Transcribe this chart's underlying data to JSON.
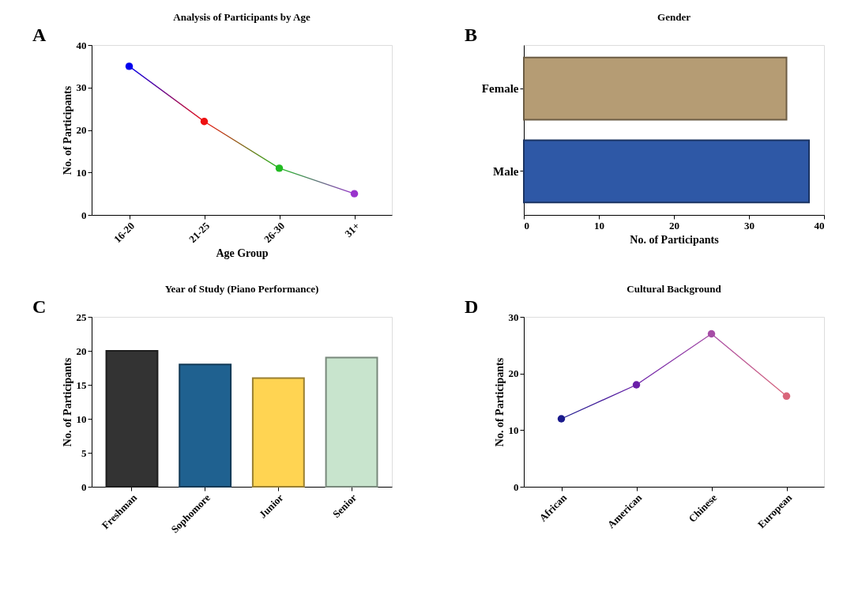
{
  "chart_data": [
    {
      "type": "line",
      "title": "Analysis of Participants by Age",
      "xlabel": "Age Group",
      "ylabel": "No. of Participants",
      "categories": [
        "16-20",
        "21-25",
        "26-30",
        "31+"
      ],
      "ylim": [
        0,
        40
      ],
      "yticks": [
        0,
        10,
        20,
        30,
        40
      ],
      "marker": "circle",
      "annotations": [
        "A"
      ],
      "series": [
        {
          "values": [
            35,
            22,
            11,
            5
          ],
          "colors": [
            "#0000ee",
            "#ee1111",
            "#22bb22",
            "#9933cc"
          ]
        }
      ]
    },
    {
      "type": "bar",
      "orientation": "horizontal",
      "title": "Gender",
      "xlabel": "No. of Participants",
      "categories": [
        "Female",
        "Male"
      ],
      "xlim": [
        0,
        40
      ],
      "xticks": [
        0,
        10,
        20,
        30,
        40
      ],
      "annotations": [
        "B"
      ],
      "series": [
        {
          "values": [
            35,
            38
          ],
          "colors": [
            "#b59c74",
            "#2e58a6"
          ]
        }
      ]
    },
    {
      "type": "bar",
      "title": "Year of Study (Piano Performance)",
      "ylabel": "No. of Participants",
      "categories": [
        "Freshman",
        "Sophomore",
        "Junior",
        "Senior"
      ],
      "ylim": [
        0,
        25
      ],
      "yticks": [
        0,
        5,
        10,
        15,
        20,
        25
      ],
      "annotations": [
        "C"
      ],
      "series": [
        {
          "values": [
            20,
            18,
            16,
            19
          ],
          "colors": [
            "#333333",
            "#1f6190",
            "#ffd452",
            "#c8e4cd"
          ]
        }
      ]
    },
    {
      "type": "line",
      "title": "Cultural Background",
      "ylabel": "No. of Participants",
      "categories": [
        "African",
        "American",
        "Chinese",
        "European"
      ],
      "ylim": [
        0,
        30
      ],
      "yticks": [
        0,
        10,
        20,
        30
      ],
      "marker": "circle",
      "annotations": [
        "D"
      ],
      "series": [
        {
          "values": [
            12,
            18,
            27,
            16
          ],
          "colors": [
            "#1a1a8c",
            "#6a1fa8",
            "#a64ca6",
            "#d9667a"
          ]
        }
      ]
    }
  ]
}
